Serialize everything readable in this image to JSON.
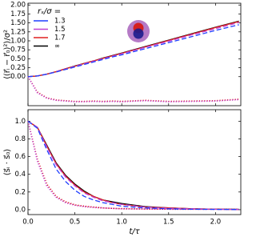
{
  "chart_data": [
    {
      "type": "line",
      "ylabel": "⟨(r⃗ᵢ − r⃗₀)²⟩/σ²",
      "legend_title": "rₛ/σ =",
      "legend": "upper left",
      "x": [
        0,
        0.1,
        0.2,
        0.3,
        0.4,
        0.5,
        0.6,
        0.7,
        0.8,
        0.9,
        1.0,
        1.25,
        1.5,
        1.75,
        2.0,
        2.25
      ],
      "series": [
        {
          "name": "1.3",
          "color": "#1f3fff",
          "linestyle": "dashed",
          "values": [
            0,
            0.02,
            0.07,
            0.13,
            0.2,
            0.27,
            0.34,
            0.41,
            0.48,
            0.55,
            0.61,
            0.78,
            0.95,
            1.12,
            1.29,
            1.45
          ]
        },
        {
          "name": "1.5",
          "color": "#c040d0",
          "linestyle": "dashed",
          "values": [
            0,
            0.02,
            0.07,
            0.14,
            0.21,
            0.29,
            0.36,
            0.43,
            0.5,
            0.57,
            0.64,
            0.82,
            0.99,
            1.17,
            1.34,
            1.51
          ]
        },
        {
          "name": "1.7",
          "color": "#e02020",
          "linestyle": "solid",
          "values": [
            0,
            0.02,
            0.07,
            0.14,
            0.22,
            0.29,
            0.37,
            0.44,
            0.51,
            0.58,
            0.65,
            0.83,
            1.01,
            1.19,
            1.37,
            1.54
          ]
        },
        {
          "name": "∞",
          "color": "#000000",
          "linestyle": "solid",
          "values": [
            0,
            0.02,
            0.07,
            0.14,
            0.22,
            0.3,
            0.37,
            0.44,
            0.52,
            0.59,
            0.66,
            0.84,
            1.02,
            1.2,
            1.38,
            1.55
          ]
        },
        {
          "color": "#c040d0",
          "linestyle": "dotted",
          "values": [
            0,
            -0.45,
            -0.6,
            -0.66,
            -0.68,
            -0.7,
            -0.7,
            -0.69,
            -0.7,
            -0.69,
            -0.7,
            -0.67,
            -0.7,
            -0.69,
            -0.68,
            -0.64
          ]
        },
        {
          "color": "#e02020",
          "linestyle": "dotted",
          "values": [
            0,
            -0.43,
            -0.59,
            -0.65,
            -0.67,
            -0.69,
            -0.69,
            -0.68,
            -0.69,
            -0.68,
            -0.69,
            -0.66,
            -0.69,
            -0.68,
            -0.67,
            -0.63
          ]
        }
      ],
      "xlim": [
        0,
        2.27
      ],
      "ylim": [
        -0.81,
        2.05
      ],
      "xticks": [
        0,
        0.5,
        1,
        1.5,
        2
      ],
      "yticks": [
        {
          "value": 0,
          "label": "0.00"
        },
        {
          "value": 0.25,
          "label": "0.25"
        },
        {
          "value": 0.5,
          "label": "0.50"
        },
        {
          "value": 0.75,
          "label": "0.75"
        },
        {
          "value": 1,
          "label": "1.00"
        },
        {
          "value": 1.25,
          "label": "1.25"
        },
        {
          "value": 1.5,
          "label": "1.50"
        },
        {
          "value": 1.75,
          "label": "1.75"
        },
        {
          "value": 2,
          "label": "2.00"
        }
      ]
    },
    {
      "type": "line",
      "ylabel": "⟨s⃗ᵢ · s⃗₀⟩",
      "xlabel": "t/τ",
      "x": [
        0,
        0.1,
        0.2,
        0.3,
        0.4,
        0.5,
        0.6,
        0.7,
        0.8,
        0.9,
        1.0,
        1.25,
        1.5,
        1.75,
        2.0,
        2.25
      ],
      "series": [
        {
          "color": "#1f3fff",
          "linestyle": "dashed",
          "values": [
            1.0,
            0.92,
            0.68,
            0.46,
            0.32,
            0.22,
            0.15,
            0.11,
            0.08,
            0.06,
            0.04,
            0.02,
            0.01,
            0.005,
            0.003,
            0.002
          ]
        },
        {
          "color": "#c040d0",
          "linestyle": "dashed",
          "values": [
            1.0,
            0.93,
            0.71,
            0.51,
            0.37,
            0.27,
            0.19,
            0.14,
            0.1,
            0.08,
            0.06,
            0.03,
            0.015,
            0.01,
            0.005,
            0.003
          ]
        },
        {
          "color": "#e02020",
          "linestyle": "solid",
          "values": [
            1.0,
            0.93,
            0.72,
            0.52,
            0.38,
            0.28,
            0.2,
            0.15,
            0.11,
            0.08,
            0.06,
            0.03,
            0.02,
            0.01,
            0.005,
            0.003
          ]
        },
        {
          "color": "#000000",
          "linestyle": "solid",
          "values": [
            1.0,
            0.93,
            0.73,
            0.53,
            0.39,
            0.29,
            0.21,
            0.15,
            0.11,
            0.09,
            0.07,
            0.035,
            0.02,
            0.01,
            0.006,
            0.004
          ]
        },
        {
          "color": "#c040d0",
          "linestyle": "dotted",
          "values": [
            1.0,
            0.55,
            0.27,
            0.14,
            0.08,
            0.05,
            0.035,
            0.025,
            0.02,
            0.015,
            0.01,
            0.008,
            0.006,
            0.005,
            0.005,
            0.005
          ]
        },
        {
          "color": "#e02020",
          "linestyle": "dotted",
          "values": [
            1.0,
            0.57,
            0.29,
            0.15,
            0.09,
            0.055,
            0.04,
            0.03,
            0.02,
            0.015,
            0.012,
            0.008,
            0.006,
            0.005,
            0.005,
            0.005
          ]
        }
      ],
      "xlim": [
        0,
        2.27
      ],
      "ylim": [
        -0.055,
        1.13
      ],
      "xticks": [
        {
          "value": 0,
          "label": "0.0"
        },
        0.5,
        {
          "value": 1,
          "label": "1.0"
        },
        1.5,
        {
          "value": 2,
          "label": "2.0"
        }
      ],
      "yticks": [
        {
          "value": 0,
          "label": "0.0"
        },
        0.2,
        0.4,
        0.6,
        0.8,
        {
          "value": 1,
          "label": "1.0"
        }
      ]
    }
  ]
}
